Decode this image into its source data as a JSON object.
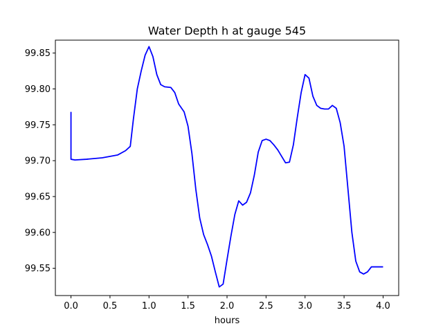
{
  "chart_data": {
    "type": "line",
    "title": "Water Depth h at gauge 545",
    "xlabel": "hours",
    "ylabel": "",
    "xlim": [
      -0.2,
      4.2
    ],
    "ylim": [
      99.512,
      99.868
    ],
    "xticks": [
      {
        "value": 0.0,
        "label": "0.0"
      },
      {
        "value": 0.5,
        "label": "0.5"
      },
      {
        "value": 1.0,
        "label": "1.0"
      },
      {
        "value": 1.5,
        "label": "1.5"
      },
      {
        "value": 2.0,
        "label": "2.0"
      },
      {
        "value": 2.5,
        "label": "2.5"
      },
      {
        "value": 3.0,
        "label": "3.0"
      },
      {
        "value": 3.5,
        "label": "3.5"
      },
      {
        "value": 4.0,
        "label": "4.0"
      }
    ],
    "yticks": [
      {
        "value": 99.55,
        "label": "99.55"
      },
      {
        "value": 99.6,
        "label": "99.60"
      },
      {
        "value": 99.65,
        "label": "99.65"
      },
      {
        "value": 99.7,
        "label": "99.70"
      },
      {
        "value": 99.75,
        "label": "99.75"
      },
      {
        "value": 99.8,
        "label": "99.80"
      },
      {
        "value": 99.85,
        "label": "99.85"
      }
    ],
    "grid": false,
    "series": [
      {
        "color": "#0000ff",
        "x": [
          0.0,
          0.0,
          0.05,
          0.2,
          0.4,
          0.6,
          0.7,
          0.76,
          0.8,
          0.85,
          0.9,
          0.95,
          1.0,
          1.05,
          1.1,
          1.15,
          1.2,
          1.28,
          1.33,
          1.38,
          1.45,
          1.5,
          1.55,
          1.6,
          1.65,
          1.7,
          1.75,
          1.8,
          1.85,
          1.9,
          1.95,
          2.0,
          2.05,
          2.1,
          2.15,
          2.2,
          2.25,
          2.3,
          2.35,
          2.4,
          2.45,
          2.5,
          2.55,
          2.6,
          2.65,
          2.7,
          2.75,
          2.8,
          2.85,
          2.9,
          2.95,
          3.0,
          3.05,
          3.1,
          3.15,
          3.2,
          3.25,
          3.3,
          3.35,
          3.4,
          3.45,
          3.5,
          3.55,
          3.6,
          3.65,
          3.7,
          3.75,
          3.8,
          3.85,
          3.9,
          3.95,
          4.0
        ],
        "y": [
          99.768,
          99.702,
          99.701,
          99.702,
          99.704,
          99.708,
          99.714,
          99.72,
          99.758,
          99.8,
          99.825,
          99.847,
          99.859,
          99.845,
          99.82,
          99.806,
          99.803,
          99.802,
          99.795,
          99.779,
          99.768,
          99.748,
          99.71,
          99.66,
          99.62,
          99.597,
          99.583,
          99.567,
          99.545,
          99.524,
          99.528,
          99.562,
          99.595,
          99.625,
          99.644,
          99.638,
          99.642,
          99.655,
          99.68,
          99.712,
          99.728,
          99.73,
          99.728,
          99.722,
          99.715,
          99.706,
          99.697,
          99.698,
          99.722,
          99.76,
          99.795,
          99.82,
          99.815,
          99.79,
          99.777,
          99.773,
          99.772,
          99.772,
          99.777,
          99.773,
          99.753,
          99.72,
          99.66,
          99.6,
          99.56,
          99.545,
          99.542,
          99.545,
          99.552,
          99.552,
          99.552,
          99.552
        ]
      }
    ]
  }
}
